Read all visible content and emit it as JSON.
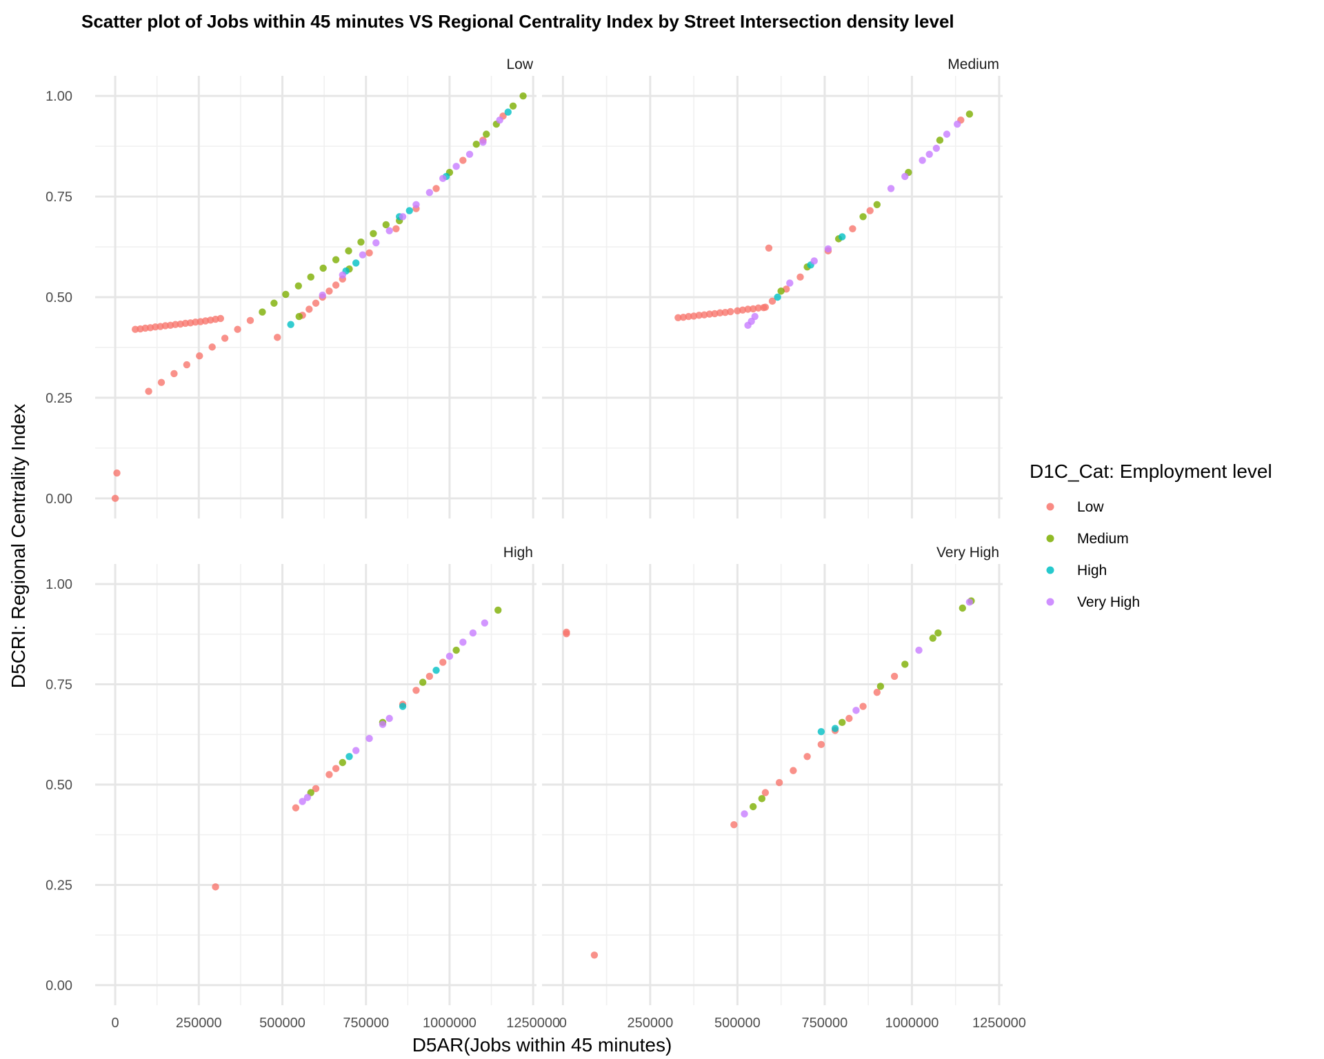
{
  "chart_data": {
    "type": "scatter",
    "title": "Scatter plot of Jobs within 45 minutes VS Regional Centrality Index by Street Intersection density level",
    "xlabel": "D5AR(Jobs within 45 minutes)",
    "ylabel": "D5CRI: Regional Centrality Index",
    "xlim": [
      -60000,
      1260000
    ],
    "ylim": [
      -0.05,
      1.05
    ],
    "x_ticks": [
      0,
      250000,
      500000,
      750000,
      1000000,
      1250000
    ],
    "x_tick_labels": [
      "0",
      "250000",
      "500000",
      "750000",
      "1000000",
      "1250000"
    ],
    "y_ticks": [
      0,
      0.25,
      0.5,
      0.75,
      1
    ],
    "y_tick_labels": [
      "0.00",
      "0.25",
      "0.50",
      "0.75",
      "1.00"
    ],
    "grid": true,
    "legend": {
      "title": "D1C_Cat: Employment level",
      "position": "right",
      "entries": [
        {
          "name": "Low",
          "color": "#F8766D"
        },
        {
          "name": "Medium",
          "color": "#7CAE00"
        },
        {
          "name": "High",
          "color": "#00BFC4"
        },
        {
          "name": "Very High",
          "color": "#C77CFF"
        }
      ]
    },
    "panels": [
      {
        "facet": "Low",
        "series": [
          {
            "name": "Low",
            "points": [
              [
                0,
                0
              ],
              [
                5000,
                0.063
              ],
              [
                60000,
                0.42
              ],
              [
                75000,
                0.421
              ],
              [
                90000,
                0.423
              ],
              [
                105000,
                0.424
              ],
              [
                120000,
                0.426
              ],
              [
                135000,
                0.427
              ],
              [
                150000,
                0.429
              ],
              [
                165000,
                0.43
              ],
              [
                180000,
                0.432
              ],
              [
                195000,
                0.433
              ],
              [
                210000,
                0.435
              ],
              [
                225000,
                0.436
              ],
              [
                240000,
                0.438
              ],
              [
                255000,
                0.439
              ],
              [
                270000,
                0.441
              ],
              [
                285000,
                0.443
              ],
              [
                300000,
                0.445
              ],
              [
                315000,
                0.447
              ],
              [
                100000,
                0.266
              ],
              [
                138000,
                0.288
              ],
              [
                176000,
                0.31
              ],
              [
                214000,
                0.332
              ],
              [
                252000,
                0.354
              ],
              [
                290000,
                0.376
              ],
              [
                328000,
                0.398
              ],
              [
                366000,
                0.42
              ],
              [
                404000,
                0.442
              ],
              [
                485000,
                0.4
              ],
              [
                560000,
                0.455
              ],
              [
                580000,
                0.47
              ],
              [
                600000,
                0.485
              ],
              [
                620000,
                0.5
              ],
              [
                640000,
                0.515
              ],
              [
                660000,
                0.53
              ],
              [
                680000,
                0.545
              ],
              [
                760000,
                0.61
              ],
              [
                840000,
                0.67
              ],
              [
                900000,
                0.72
              ],
              [
                960000,
                0.77
              ],
              [
                1040000,
                0.84
              ],
              [
                1100000,
                0.89
              ],
              [
                1160000,
                0.95
              ]
            ]
          },
          {
            "name": "Medium",
            "points": [
              [
                440000,
                0.463
              ],
              [
                475000,
                0.485
              ],
              [
                510000,
                0.507
              ],
              [
                548000,
                0.528
              ],
              [
                585000,
                0.55
              ],
              [
                622000,
                0.572
              ],
              [
                660000,
                0.593
              ],
              [
                698000,
                0.615
              ],
              [
                735000,
                0.637
              ],
              [
                772000,
                0.658
              ],
              [
                810000,
                0.68
              ],
              [
                550000,
                0.452
              ],
              [
                700000,
                0.57
              ],
              [
                850000,
                0.69
              ],
              [
                1000000,
                0.81
              ],
              [
                1080000,
                0.88
              ],
              [
                1110000,
                0.905
              ],
              [
                1140000,
                0.93
              ],
              [
                1190000,
                0.975
              ],
              [
                1220000,
                1.0
              ]
            ]
          },
          {
            "name": "High",
            "points": [
              [
                525000,
                0.432
              ],
              [
                690000,
                0.565
              ],
              [
                720000,
                0.585
              ],
              [
                850000,
                0.7
              ],
              [
                880000,
                0.715
              ],
              [
                990000,
                0.8
              ],
              [
                1175000,
                0.96
              ]
            ]
          },
          {
            "name": "Very High",
            "points": [
              [
                620000,
                0.505
              ],
              [
                680000,
                0.555
              ],
              [
                740000,
                0.605
              ],
              [
                780000,
                0.635
              ],
              [
                820000,
                0.665
              ],
              [
                860000,
                0.7
              ],
              [
                900000,
                0.73
              ],
              [
                940000,
                0.76
              ],
              [
                980000,
                0.795
              ],
              [
                1020000,
                0.825
              ],
              [
                1060000,
                0.855
              ],
              [
                1100000,
                0.885
              ],
              [
                1150000,
                0.94
              ]
            ]
          }
        ]
      },
      {
        "facet": "Medium",
        "series": [
          {
            "name": "Low",
            "points": [
              [
                330000,
                0.449
              ],
              [
                345000,
                0.45
              ],
              [
                360000,
                0.452
              ],
              [
                375000,
                0.453
              ],
              [
                390000,
                0.455
              ],
              [
                405000,
                0.456
              ],
              [
                420000,
                0.458
              ],
              [
                435000,
                0.459
              ],
              [
                450000,
                0.461
              ],
              [
                465000,
                0.462
              ],
              [
                480000,
                0.464
              ],
              [
                500000,
                0.466
              ],
              [
                515000,
                0.468
              ],
              [
                530000,
                0.47
              ],
              [
                545000,
                0.471
              ],
              [
                560000,
                0.473
              ],
              [
                575000,
                0.474
              ],
              [
                590000,
                0.622
              ],
              [
                580000,
                0.475
              ],
              [
                600000,
                0.49
              ],
              [
                640000,
                0.52
              ],
              [
                680000,
                0.55
              ],
              [
                760000,
                0.615
              ],
              [
                830000,
                0.67
              ],
              [
                880000,
                0.715
              ],
              [
                1140000,
                0.94
              ]
            ]
          },
          {
            "name": "Medium",
            "points": [
              [
                625000,
                0.515
              ],
              [
                700000,
                0.575
              ],
              [
                790000,
                0.645
              ],
              [
                860000,
                0.7
              ],
              [
                900000,
                0.73
              ],
              [
                990000,
                0.81
              ],
              [
                1080000,
                0.89
              ],
              [
                1165000,
                0.955
              ]
            ]
          },
          {
            "name": "High",
            "points": [
              [
                615000,
                0.5
              ],
              [
                710000,
                0.58
              ],
              [
                800000,
                0.65
              ]
            ]
          },
          {
            "name": "Very High",
            "points": [
              [
                530000,
                0.43
              ],
              [
                540000,
                0.44
              ],
              [
                550000,
                0.452
              ],
              [
                650000,
                0.535
              ],
              [
                720000,
                0.59
              ],
              [
                760000,
                0.62
              ],
              [
                940000,
                0.77
              ],
              [
                980000,
                0.8
              ],
              [
                1030000,
                0.84
              ],
              [
                1050000,
                0.855
              ],
              [
                1070000,
                0.87
              ],
              [
                1100000,
                0.905
              ],
              [
                1130000,
                0.93
              ]
            ]
          }
        ]
      },
      {
        "facet": "High",
        "series": [
          {
            "name": "Low",
            "points": [
              [
                300000,
                0.245
              ],
              [
                540000,
                0.442
              ],
              [
                600000,
                0.49
              ],
              [
                640000,
                0.525
              ],
              [
                660000,
                0.54
              ],
              [
                860000,
                0.7
              ],
              [
                900000,
                0.735
              ],
              [
                940000,
                0.77
              ],
              [
                980000,
                0.805
              ]
            ]
          },
          {
            "name": "Medium",
            "points": [
              [
                585000,
                0.48
              ],
              [
                680000,
                0.555
              ],
              [
                800000,
                0.655
              ],
              [
                920000,
                0.755
              ],
              [
                1020000,
                0.835
              ],
              [
                1145000,
                0.935
              ]
            ]
          },
          {
            "name": "High",
            "points": [
              [
                700000,
                0.57
              ],
              [
                860000,
                0.695
              ],
              [
                960000,
                0.785
              ]
            ]
          },
          {
            "name": "Very High",
            "points": [
              [
                560000,
                0.458
              ],
              [
                575000,
                0.468
              ],
              [
                720000,
                0.585
              ],
              [
                760000,
                0.615
              ],
              [
                800000,
                0.65
              ],
              [
                820000,
                0.665
              ],
              [
                1000000,
                0.82
              ],
              [
                1040000,
                0.855
              ],
              [
                1070000,
                0.878
              ],
              [
                1105000,
                0.903
              ]
            ]
          }
        ]
      },
      {
        "facet": "Very High",
        "series": [
          {
            "name": "Low",
            "points": [
              [
                10000,
                0.876
              ],
              [
                10000,
                0.88
              ],
              [
                90000,
                0.075
              ],
              [
                490000,
                0.4
              ],
              [
                580000,
                0.48
              ],
              [
                620000,
                0.505
              ],
              [
                660000,
                0.535
              ],
              [
                700000,
                0.57
              ],
              [
                740000,
                0.6
              ],
              [
                780000,
                0.635
              ],
              [
                820000,
                0.665
              ],
              [
                860000,
                0.695
              ],
              [
                900000,
                0.73
              ],
              [
                950000,
                0.77
              ]
            ]
          },
          {
            "name": "Medium",
            "points": [
              [
                545000,
                0.445
              ],
              [
                570000,
                0.465
              ],
              [
                800000,
                0.655
              ],
              [
                910000,
                0.745
              ],
              [
                980000,
                0.8
              ],
              [
                1060000,
                0.865
              ],
              [
                1075000,
                0.878
              ],
              [
                1145000,
                0.94
              ],
              [
                1170000,
                0.958
              ]
            ]
          },
          {
            "name": "High",
            "points": [
              [
                740000,
                0.632
              ],
              [
                780000,
                0.64
              ]
            ]
          },
          {
            "name": "Very High",
            "points": [
              [
                520000,
                0.427
              ],
              [
                840000,
                0.685
              ],
              [
                1020000,
                0.835
              ],
              [
                1165000,
                0.955
              ]
            ]
          }
        ]
      }
    ]
  }
}
